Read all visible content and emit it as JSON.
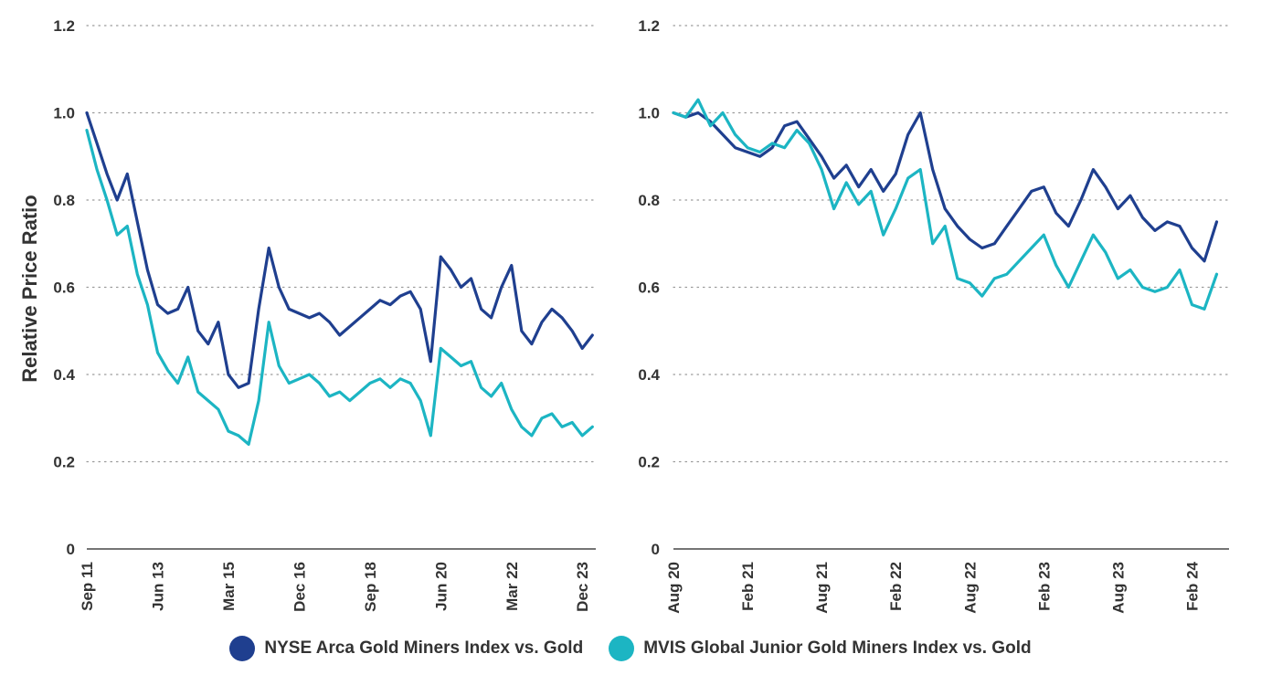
{
  "colors": {
    "series1": "#1f3f8f",
    "series2": "#1cb5c3",
    "axis": "#222222",
    "grid": "#9a9a9a",
    "text": "#333333"
  },
  "legend": [
    {
      "label": "NYSE Arca Gold Miners Index vs. Gold",
      "color": "#1f3f8f"
    },
    {
      "label": "MVIS Global Junior Gold Miners Index vs. Gold",
      "color": "#1cb5c3"
    }
  ],
  "chart_data": [
    {
      "type": "line",
      "ylabel": "Relative Price Ratio",
      "ylim": [
        0,
        1.2
      ],
      "yticks": [
        "1.2",
        "1.0",
        "0.8",
        "0.6",
        "0.4",
        "0.2",
        "0"
      ],
      "grid": true,
      "xlim": [
        "2011-09",
        "2024-04"
      ],
      "xticks": [
        "Sep 11",
        "Jun 13",
        "Mar 15",
        "Dec 16",
        "Sep 18",
        "Jun 20",
        "Mar 22",
        "Dec 23"
      ],
      "x": [
        "2011-09",
        "2011-12",
        "2012-03",
        "2012-06",
        "2012-09",
        "2012-12",
        "2013-03",
        "2013-06",
        "2013-09",
        "2013-12",
        "2014-03",
        "2014-06",
        "2014-09",
        "2014-12",
        "2015-03",
        "2015-06",
        "2015-09",
        "2015-12",
        "2016-03",
        "2016-06",
        "2016-09",
        "2016-12",
        "2017-03",
        "2017-06",
        "2017-09",
        "2017-12",
        "2018-03",
        "2018-06",
        "2018-09",
        "2018-12",
        "2019-03",
        "2019-06",
        "2019-09",
        "2019-12",
        "2020-03",
        "2020-06",
        "2020-09",
        "2020-12",
        "2021-03",
        "2021-06",
        "2021-09",
        "2021-12",
        "2022-03",
        "2022-06",
        "2022-09",
        "2022-12",
        "2023-03",
        "2023-06",
        "2023-09",
        "2023-12",
        "2024-03"
      ],
      "series": [
        {
          "name": "NYSE Arca Gold Miners Index vs. Gold",
          "values": [
            1.0,
            0.93,
            0.86,
            0.8,
            0.86,
            0.75,
            0.64,
            0.56,
            0.54,
            0.55,
            0.6,
            0.5,
            0.47,
            0.52,
            0.4,
            0.37,
            0.38,
            0.55,
            0.69,
            0.6,
            0.55,
            0.54,
            0.53,
            0.54,
            0.52,
            0.49,
            0.51,
            0.53,
            0.55,
            0.57,
            0.56,
            0.58,
            0.59,
            0.55,
            0.43,
            0.67,
            0.64,
            0.6,
            0.62,
            0.55,
            0.53,
            0.6,
            0.65,
            0.5,
            0.47,
            0.52,
            0.55,
            0.53,
            0.5,
            0.46,
            0.49
          ]
        },
        {
          "name": "MVIS Global Junior Gold Miners Index vs. Gold",
          "values": [
            0.96,
            0.87,
            0.8,
            0.72,
            0.74,
            0.63,
            0.56,
            0.45,
            0.41,
            0.38,
            0.44,
            0.36,
            0.34,
            0.32,
            0.27,
            0.26,
            0.24,
            0.34,
            0.52,
            0.42,
            0.38,
            0.39,
            0.4,
            0.38,
            0.35,
            0.36,
            0.34,
            0.36,
            0.38,
            0.39,
            0.37,
            0.39,
            0.38,
            0.34,
            0.26,
            0.46,
            0.44,
            0.42,
            0.43,
            0.37,
            0.35,
            0.38,
            0.32,
            0.28,
            0.26,
            0.3,
            0.31,
            0.28,
            0.29,
            0.26,
            0.28
          ]
        }
      ]
    },
    {
      "type": "line",
      "ylim": [
        0,
        1.2
      ],
      "yticks": [
        "1.2",
        "1.0",
        "0.8",
        "0.6",
        "0.4",
        "0.2",
        "0"
      ],
      "grid": true,
      "xlim": [
        "2020-08",
        "2024-05"
      ],
      "xticks": [
        "Aug 20",
        "Feb 21",
        "Aug 21",
        "Feb 22",
        "Aug 22",
        "Feb 23",
        "Aug 23",
        "Feb 24"
      ],
      "x": [
        "2020-08",
        "2020-09",
        "2020-10",
        "2020-11",
        "2020-12",
        "2021-01",
        "2021-02",
        "2021-03",
        "2021-04",
        "2021-05",
        "2021-06",
        "2021-07",
        "2021-08",
        "2021-09",
        "2021-10",
        "2021-11",
        "2021-12",
        "2022-01",
        "2022-02",
        "2022-03",
        "2022-04",
        "2022-05",
        "2022-06",
        "2022-07",
        "2022-08",
        "2022-09",
        "2022-10",
        "2022-11",
        "2022-12",
        "2023-01",
        "2023-02",
        "2023-03",
        "2023-04",
        "2023-05",
        "2023-06",
        "2023-07",
        "2023-08",
        "2023-09",
        "2023-10",
        "2023-11",
        "2023-12",
        "2024-01",
        "2024-02",
        "2024-03",
        "2024-04"
      ],
      "series": [
        {
          "name": "NYSE Arca Gold Miners Index vs. Gold",
          "values": [
            1.0,
            0.99,
            1.0,
            0.98,
            0.95,
            0.92,
            0.91,
            0.9,
            0.92,
            0.97,
            0.98,
            0.94,
            0.9,
            0.85,
            0.88,
            0.83,
            0.87,
            0.82,
            0.86,
            0.95,
            1.0,
            0.87,
            0.78,
            0.74,
            0.71,
            0.69,
            0.7,
            0.74,
            0.78,
            0.82,
            0.83,
            0.77,
            0.74,
            0.8,
            0.87,
            0.83,
            0.78,
            0.81,
            0.76,
            0.73,
            0.75,
            0.74,
            0.69,
            0.66,
            0.75
          ]
        },
        {
          "name": "MVIS Global Junior Gold Miners Index vs. Gold",
          "values": [
            1.0,
            0.99,
            1.03,
            0.97,
            1.0,
            0.95,
            0.92,
            0.91,
            0.93,
            0.92,
            0.96,
            0.93,
            0.87,
            0.78,
            0.84,
            0.79,
            0.82,
            0.72,
            0.78,
            0.85,
            0.87,
            0.7,
            0.74,
            0.62,
            0.61,
            0.58,
            0.62,
            0.63,
            0.66,
            0.69,
            0.72,
            0.65,
            0.6,
            0.66,
            0.72,
            0.68,
            0.62,
            0.64,
            0.6,
            0.59,
            0.6,
            0.64,
            0.56,
            0.55,
            0.63
          ]
        }
      ]
    }
  ]
}
